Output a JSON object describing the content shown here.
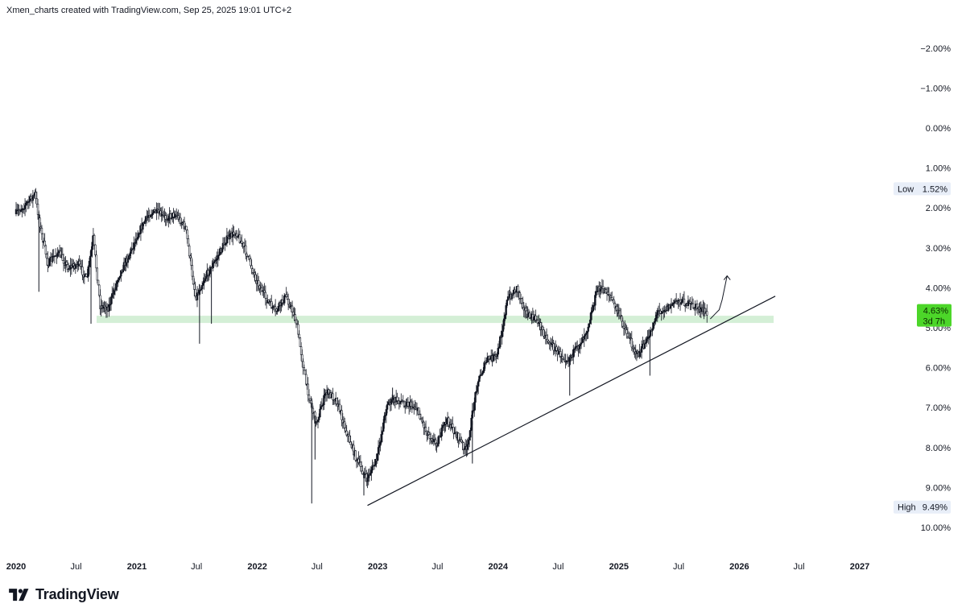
{
  "header": {
    "attribution": "Xmen_charts created with TradingView.com, Sep 25, 2025 19:01 UTC+2"
  },
  "footer": {
    "brand": "TradingView",
    "logo_icon": "tradingview-logo-icon"
  },
  "chart_data": {
    "type": "candlestick",
    "y_scale": "inverted-percent",
    "ylim": [
      -2.5,
      10.5
    ],
    "y_ticks": [
      "−2.00%",
      "−1.00%",
      "0.00%",
      "1.00%",
      "2.00%",
      "3.00%",
      "4.00%",
      "5.00%",
      "6.00%",
      "7.00%",
      "8.00%",
      "9.00%",
      "10.00%"
    ],
    "y_tick_values": [
      -2,
      -1,
      0,
      1,
      2,
      3,
      4,
      5,
      6,
      7,
      8,
      9,
      10
    ],
    "x_ticks": [
      {
        "label": "2020",
        "date": "2020-01-01",
        "bold": true
      },
      {
        "label": "Jul",
        "date": "2020-07-01",
        "bold": false
      },
      {
        "label": "2021",
        "date": "2021-01-01",
        "bold": true
      },
      {
        "label": "Jul",
        "date": "2021-07-01",
        "bold": false
      },
      {
        "label": "2022",
        "date": "2022-01-01",
        "bold": true
      },
      {
        "label": "Jul",
        "date": "2022-07-01",
        "bold": false
      },
      {
        "label": "2023",
        "date": "2023-01-01",
        "bold": true
      },
      {
        "label": "Jul",
        "date": "2023-07-01",
        "bold": false
      },
      {
        "label": "2024",
        "date": "2024-01-01",
        "bold": true
      },
      {
        "label": "Jul",
        "date": "2024-07-01",
        "bold": false
      },
      {
        "label": "2025",
        "date": "2025-01-01",
        "bold": true
      },
      {
        "label": "Jul",
        "date": "2025-07-01",
        "bold": false
      },
      {
        "label": "2026",
        "date": "2026-01-01",
        "bold": true
      },
      {
        "label": "Jul",
        "date": "2026-07-01",
        "bold": false
      },
      {
        "label": "2027",
        "date": "2027-01-01",
        "bold": true
      }
    ],
    "series_path": [
      [
        "2020-01-01",
        2.15
      ],
      [
        "2020-02-10",
        1.85
      ],
      [
        "2020-03-01",
        1.65
      ],
      [
        "2020-03-20",
        2.6
      ],
      [
        "2020-04-10",
        3.4
      ],
      [
        "2020-05-10",
        3.1
      ],
      [
        "2020-06-10",
        3.5
      ],
      [
        "2020-07-10",
        3.4
      ],
      [
        "2020-08-05",
        3.8
      ],
      [
        "2020-08-25",
        2.75
      ],
      [
        "2020-09-15",
        4.45
      ],
      [
        "2020-10-10",
        4.5
      ],
      [
        "2020-11-10",
        3.7
      ],
      [
        "2020-12-10",
        3.2
      ],
      [
        "2021-01-10",
        2.6
      ],
      [
        "2021-02-10",
        2.15
      ],
      [
        "2021-03-01",
        2.1
      ],
      [
        "2021-04-01",
        2.25
      ],
      [
        "2021-05-01",
        2.15
      ],
      [
        "2021-06-01",
        2.5
      ],
      [
        "2021-07-01",
        4.25
      ],
      [
        "2021-08-01",
        3.7
      ],
      [
        "2021-09-01",
        3.3
      ],
      [
        "2021-10-01",
        2.8
      ],
      [
        "2021-11-01",
        2.6
      ],
      [
        "2021-12-01",
        3.1
      ],
      [
        "2022-01-01",
        3.8
      ],
      [
        "2022-02-01",
        4.3
      ],
      [
        "2022-03-01",
        4.6
      ],
      [
        "2022-04-01",
        4.2
      ],
      [
        "2022-05-01",
        4.8
      ],
      [
        "2022-06-01",
        6.4
      ],
      [
        "2022-07-01",
        7.4
      ],
      [
        "2022-08-01",
        6.6
      ],
      [
        "2022-09-01",
        6.8
      ],
      [
        "2022-10-01",
        7.6
      ],
      [
        "2022-11-01",
        8.3
      ],
      [
        "2022-12-01",
        8.8
      ],
      [
        "2023-01-01",
        8.3
      ],
      [
        "2023-02-01",
        6.9
      ],
      [
        "2023-03-01",
        6.8
      ],
      [
        "2023-04-01",
        6.9
      ],
      [
        "2023-05-01",
        7.0
      ],
      [
        "2023-06-01",
        7.6
      ],
      [
        "2023-07-01",
        7.9
      ],
      [
        "2023-08-01",
        7.3
      ],
      [
        "2023-09-01",
        7.7
      ],
      [
        "2023-10-01",
        8.1
      ],
      [
        "2023-11-01",
        6.4
      ],
      [
        "2023-12-01",
        5.8
      ],
      [
        "2024-01-01",
        5.7
      ],
      [
        "2024-02-01",
        4.3
      ],
      [
        "2024-03-01",
        4.0
      ],
      [
        "2024-04-01",
        4.7
      ],
      [
        "2024-05-01",
        4.8
      ],
      [
        "2024-06-01",
        5.3
      ],
      [
        "2024-07-01",
        5.6
      ],
      [
        "2024-08-01",
        5.8
      ],
      [
        "2024-09-01",
        5.5
      ],
      [
        "2024-10-01",
        5.0
      ],
      [
        "2024-11-01",
        4.0
      ],
      [
        "2024-12-01",
        4.1
      ],
      [
        "2025-01-01",
        4.6
      ],
      [
        "2025-02-01",
        5.2
      ],
      [
        "2025-03-01",
        5.7
      ],
      [
        "2025-04-01",
        5.3
      ],
      [
        "2025-05-01",
        4.6
      ],
      [
        "2025-06-01",
        4.5
      ],
      [
        "2025-07-01",
        4.3
      ],
      [
        "2025-08-01",
        4.4
      ],
      [
        "2025-09-01",
        4.5
      ],
      [
        "2025-09-25",
        4.63
      ]
    ],
    "spikes": [
      [
        "2020-03-10",
        4.1
      ],
      [
        "2020-08-15",
        4.9
      ],
      [
        "2021-07-10",
        5.4
      ],
      [
        "2021-08-15",
        4.9
      ],
      [
        "2022-06-15",
        9.4
      ],
      [
        "2022-06-25",
        8.3
      ],
      [
        "2022-11-20",
        9.2
      ],
      [
        "2023-02-15",
        6.5
      ],
      [
        "2023-10-15",
        8.4
      ],
      [
        "2024-08-05",
        6.7
      ],
      [
        "2025-04-05",
        6.2
      ]
    ],
    "support_zone": {
      "from": "2020-09-01",
      "to": "2026-04-15",
      "y_top": 4.7,
      "y_bottom": 4.88,
      "color": "#cdeccf"
    },
    "trendline": {
      "from": [
        "2022-12-01",
        9.45
      ],
      "to": [
        "2026-04-20",
        4.21
      ]
    },
    "projection": [
      [
        "2025-10-05",
        4.78
      ],
      [
        "2025-11-01",
        4.55
      ],
      [
        "2025-11-10",
        4.3
      ],
      [
        "2025-11-25",
        3.7
      ]
    ],
    "current": {
      "value": "4.63%",
      "countdown": "3d 7h",
      "color": "#4cd629"
    },
    "low": {
      "label": "Low",
      "value": "1.52%",
      "y": 1.52
    },
    "high": {
      "label": "High",
      "value": "9.49%",
      "y": 9.49
    },
    "candle_color": "#131722",
    "trendline_color": "#131722"
  }
}
